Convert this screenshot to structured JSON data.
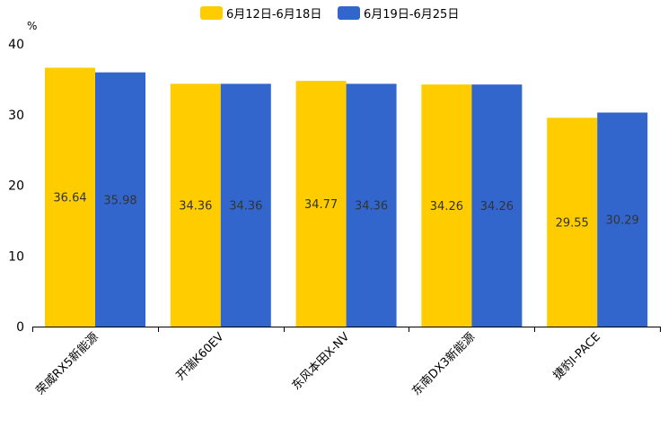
{
  "chart_data": {
    "type": "bar",
    "ylabel": "%",
    "ylim": [
      0,
      40
    ],
    "yticks": [
      0,
      10,
      20,
      30,
      40
    ],
    "categories": [
      "荣威RX5新能源",
      "开瑞K60EV",
      "东风本田X-NV",
      "东南DX3新能源",
      "捷豹I-PACE"
    ],
    "series": [
      {
        "name": "6月12日-6月18日",
        "values": [
          36.64,
          34.36,
          34.77,
          34.26,
          29.55
        ],
        "value_labels": [
          "36.64",
          "34.36",
          "34.77",
          "34.26",
          "29.55"
        ],
        "color": "#FFCC00"
      },
      {
        "name": "6月19日-6月25日",
        "values": [
          35.98,
          34.36,
          34.36,
          34.26,
          30.29
        ],
        "value_labels": [
          "35.98",
          "34.36",
          "34.36",
          "34.26",
          "30.29"
        ],
        "color": "#3366CC"
      }
    ],
    "legend_position": "top-center",
    "grid": false
  }
}
